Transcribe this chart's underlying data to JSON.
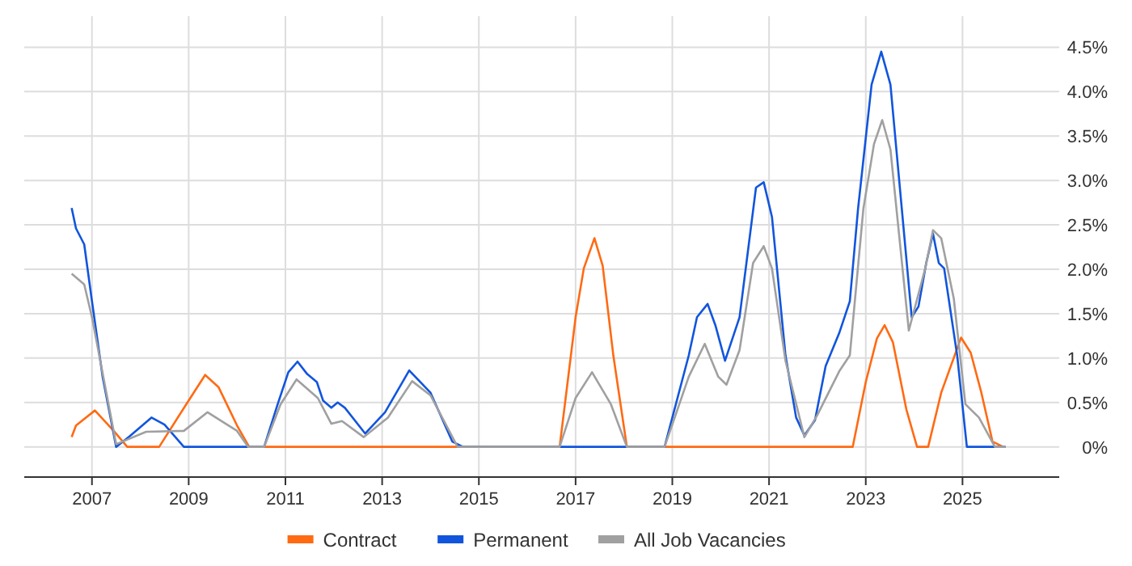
{
  "chart_data": {
    "type": "line",
    "xlim": [
      2005.6,
      2027
    ],
    "xticks": [
      2007,
      2009,
      2011,
      2013,
      2015,
      2017,
      2019,
      2021,
      2023,
      2025
    ],
    "ylim": [
      -0.34,
      4.85
    ],
    "yticks": [
      {
        "value": 0,
        "label": "0%"
      },
      {
        "value": 0.5,
        "label": "0.5%"
      },
      {
        "value": 1,
        "label": "1.0%"
      },
      {
        "value": 1.5,
        "label": "1.5%"
      },
      {
        "value": 2,
        "label": "2.0%"
      },
      {
        "value": 2.5,
        "label": "2.5%"
      },
      {
        "value": 3,
        "label": "3.0%"
      },
      {
        "value": 3.5,
        "label": "3.5%"
      },
      {
        "value": 4,
        "label": "4.0%"
      },
      {
        "value": 4.5,
        "label": "4.5%"
      }
    ],
    "grid": true,
    "legend": "bottom",
    "marker": "none",
    "line_style": "solid",
    "series": [
      {
        "name": "Contract",
        "color": "#ff6a13",
        "x": [
          2006.58,
          2006.67,
          2007.06,
          2007.45,
          2007.73,
          2008.39,
          2008.95,
          2009.34,
          2009.62,
          2010.0,
          2010.25,
          2016.67,
          2017.0,
          2017.17,
          2017.39,
          2017.56,
          2017.78,
          2018.06,
          2022.73,
          2023.0,
          2023.23,
          2023.39,
          2023.56,
          2023.84,
          2024.06,
          2024.29,
          2024.56,
          2024.97,
          2025.17,
          2025.39,
          2025.62,
          2025.84
        ],
        "values": [
          0.11,
          0.24,
          0.41,
          0.18,
          0,
          0,
          0.48,
          0.81,
          0.67,
          0.24,
          0,
          0,
          1.46,
          2.01,
          2.35,
          2.04,
          1.03,
          0,
          0,
          0.73,
          1.22,
          1.37,
          1.18,
          0.42,
          0,
          0,
          0.61,
          1.23,
          1.06,
          0.61,
          0.06,
          0
        ]
      },
      {
        "name": "Permanent",
        "color": "#1155dd",
        "x": [
          2006.58,
          2006.67,
          2006.84,
          2007.0,
          2007.22,
          2007.5,
          2007.78,
          2008.23,
          2008.5,
          2008.9,
          2010.56,
          2010.84,
          2011.06,
          2011.25,
          2011.45,
          2011.65,
          2011.78,
          2011.95,
          2012.08,
          2012.23,
          2012.65,
          2013.06,
          2013.56,
          2014.0,
          2014.45,
          2014.67,
          2018.84,
          2019.34,
          2019.51,
          2019.73,
          2019.89,
          2020.09,
          2020.39,
          2020.73,
          2020.89,
          2021.06,
          2021.34,
          2021.56,
          2021.73,
          2021.95,
          2022.17,
          2022.45,
          2022.67,
          2022.84,
          2023.12,
          2023.32,
          2023.51,
          2023.95,
          2024.09,
          2024.25,
          2024.39,
          2024.51,
          2024.62,
          2024.89,
          2025.09,
          2025.89
        ],
        "values": [
          2.69,
          2.46,
          2.28,
          1.64,
          0.79,
          0,
          0.12,
          0.33,
          0.25,
          0,
          0,
          0.48,
          0.84,
          0.96,
          0.82,
          0.73,
          0.52,
          0.44,
          0.5,
          0.44,
          0.15,
          0.39,
          0.86,
          0.61,
          0.06,
          0,
          0,
          1.03,
          1.46,
          1.61,
          1.37,
          0.97,
          1.46,
          2.92,
          2.98,
          2.59,
          1.03,
          0.33,
          0.13,
          0.3,
          0.91,
          1.28,
          1.64,
          2.68,
          4.08,
          4.45,
          4.08,
          1.46,
          1.58,
          2.07,
          2.4,
          2.07,
          2.01,
          1.03,
          0,
          0
        ]
      },
      {
        "name": "All Job Vacancies",
        "color": "#a0a0a0",
        "x": [
          2006.58,
          2006.84,
          2007.0,
          2007.5,
          2008.12,
          2008.9,
          2009.39,
          2010.0,
          2010.23,
          2010.56,
          2010.9,
          2011.23,
          2011.67,
          2011.95,
          2012.17,
          2012.62,
          2013.12,
          2013.62,
          2014.0,
          2014.56,
          2016.67,
          2017.0,
          2017.34,
          2017.73,
          2018.06,
          2018.84,
          2019.34,
          2019.67,
          2019.95,
          2020.12,
          2020.39,
          2020.67,
          2020.89,
          2021.06,
          2021.34,
          2021.73,
          2022.0,
          2022.45,
          2022.67,
          2022.95,
          2023.17,
          2023.34,
          2023.51,
          2023.89,
          2024.23,
          2024.39,
          2024.56,
          2024.82,
          2025.06,
          2025.34,
          2025.67,
          2025.89
        ],
        "values": [
          1.95,
          1.83,
          1.46,
          0.03,
          0.17,
          0.18,
          0.39,
          0.18,
          0,
          0,
          0.48,
          0.76,
          0.55,
          0.26,
          0.29,
          0.11,
          0.33,
          0.74,
          0.58,
          0,
          0,
          0.55,
          0.84,
          0.48,
          0,
          0,
          0.79,
          1.16,
          0.79,
          0.7,
          1.09,
          2.07,
          2.26,
          2.01,
          0.97,
          0.11,
          0.36,
          0.85,
          1.03,
          2.68,
          3.41,
          3.68,
          3.35,
          1.31,
          2.01,
          2.44,
          2.35,
          1.67,
          0.48,
          0.33,
          0,
          0
        ]
      }
    ]
  }
}
